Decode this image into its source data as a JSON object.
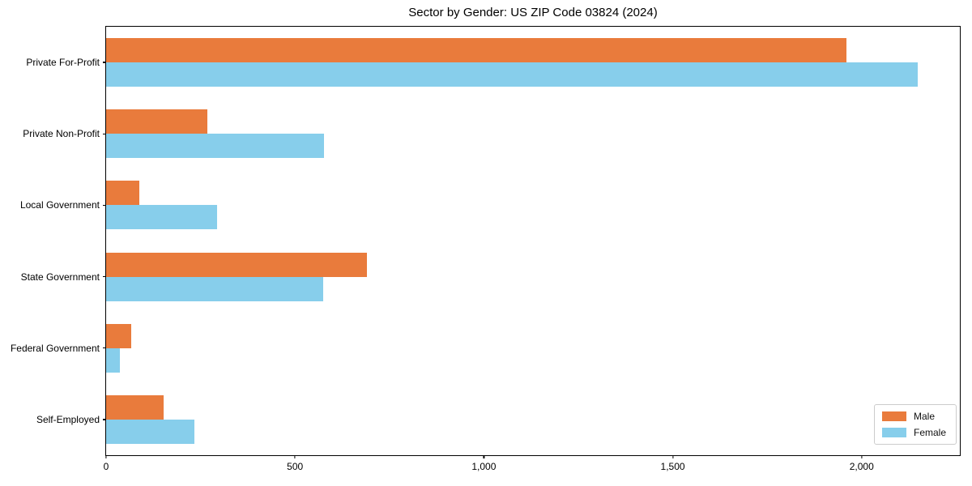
{
  "title": "Sector by Gender: US ZIP Code 03824 (2024)",
  "colors": {
    "male": "#E97B3C",
    "female": "#87CEEB",
    "spine": "#000000",
    "legend_border": "#CCCCCC",
    "background": "#FFFFFF"
  },
  "legend": {
    "position": "lower right",
    "items": [
      {
        "label": "Male",
        "color": "#E97B3C"
      },
      {
        "label": "Female",
        "color": "#87CEEB"
      }
    ]
  },
  "chart_data": {
    "type": "bar",
    "orientation": "horizontal",
    "title": "Sector by Gender: US ZIP Code 03824 (2024)",
    "xlabel": "",
    "ylabel": "",
    "categories": [
      "Private For-Profit",
      "Private Non-Profit",
      "Local Government",
      "State Government",
      "Federal Government",
      "Self-Employed"
    ],
    "series": [
      {
        "name": "Male",
        "color": "#E97B3C",
        "values": [
          1960,
          269,
          87,
          691,
          66,
          152
        ]
      },
      {
        "name": "Female",
        "color": "#87CEEB",
        "values": [
          2148,
          577,
          294,
          574,
          36,
          233
        ]
      }
    ],
    "xlim": [
      0,
      2260
    ],
    "xticks": [
      0,
      500,
      1000,
      1500,
      2000
    ],
    "xtick_labels": [
      "0",
      "500",
      "1,000",
      "1,500",
      "2,000"
    ],
    "grid": false,
    "legend_position": "lower right"
  }
}
